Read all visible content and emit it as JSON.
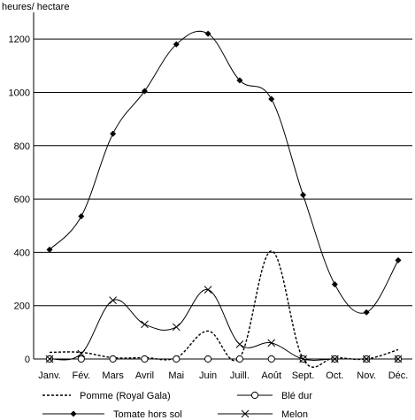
{
  "chart_data": {
    "type": "line",
    "ylabel": "heures/ hectare",
    "xlabel": "",
    "ylim": [
      0,
      1300
    ],
    "yticks": [
      0,
      200,
      400,
      600,
      800,
      1000,
      1200
    ],
    "grid": true,
    "legend_position": "bottom",
    "categories": [
      "Janv.",
      "Fév.",
      "Mars",
      "Avril",
      "Mai",
      "Juin",
      "Juill.",
      "Août",
      "Sept.",
      "Oct.",
      "Nov.",
      "Déc."
    ],
    "series": [
      {
        "name": "Pomme (Royal Gala)",
        "style": "dotted",
        "marker": "none",
        "values": [
          25,
          25,
          5,
          5,
          5,
          105,
          5,
          405,
          0,
          5,
          0,
          35
        ]
      },
      {
        "name": "Blé dur",
        "style": "solid",
        "marker": "circle",
        "values": [
          0,
          0,
          0,
          0,
          0,
          0,
          0,
          0,
          0,
          0,
          0,
          0
        ]
      },
      {
        "name": "Tomate hors sol",
        "style": "solid",
        "marker": "diamond",
        "values": [
          410,
          535,
          845,
          1005,
          1180,
          1220,
          1045,
          975,
          615,
          280,
          175,
          370
        ]
      },
      {
        "name": "Melon",
        "style": "solid",
        "marker": "x",
        "values": [
          0,
          20,
          220,
          130,
          120,
          260,
          55,
          60,
          0,
          0,
          0,
          0
        ]
      }
    ],
    "colors": {
      "line": "#000000",
      "grid": "#000000",
      "background": "#ffffff"
    }
  }
}
